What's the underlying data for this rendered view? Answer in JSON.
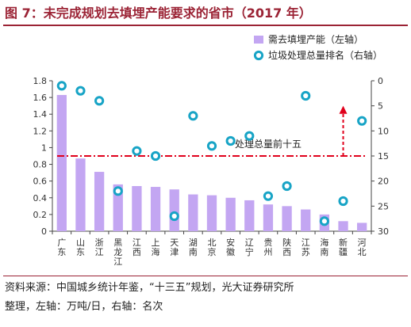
{
  "header": {
    "title": "图 7：未完成规划去填埋产能要求的省市（2017 年）"
  },
  "footer": {
    "source_line1": "资料来源：中国城乡统计年鉴，“十三五”规划，光大证券研究所",
    "source_line2": "整理，左轴：万吨/日，右轴：名次"
  },
  "chart_data": {
    "type": "bar",
    "categories": [
      "广东",
      "山东",
      "浙江",
      "黑龙江",
      "江西",
      "上海",
      "天津",
      "湖南",
      "北京",
      "安徽",
      "辽宁",
      "贵州",
      "陕西",
      "江苏",
      "海南",
      "新疆",
      "河北"
    ],
    "series": [
      {
        "name": "需去填埋产能（左轴）",
        "kind": "bar",
        "axis": "left",
        "color": "#c3a6f2",
        "values": [
          1.63,
          0.87,
          0.71,
          0.56,
          0.54,
          0.53,
          0.5,
          0.44,
          0.43,
          0.4,
          0.37,
          0.32,
          0.3,
          0.26,
          0.2,
          0.12,
          0.1
        ]
      },
      {
        "name": "垃圾处理总量排名（右轴）",
        "kind": "scatter",
        "axis": "right",
        "color": "#18a4c6",
        "values": [
          1,
          2,
          4,
          22,
          14,
          15,
          27,
          7,
          13,
          12,
          11,
          23,
          21,
          3,
          28,
          24,
          8
        ]
      }
    ],
    "y_left": {
      "min": 0,
      "max": 1.8,
      "ticks": [
        "0",
        "0.2",
        "0.4",
        "0.6",
        "0.8",
        "1",
        "1.2",
        "1.4",
        "1.6",
        "1.8"
      ]
    },
    "y_right": {
      "min": 0,
      "max": 30,
      "inverted": true,
      "ticks": [
        "0",
        "5",
        "10",
        "15",
        "20",
        "25",
        "30"
      ]
    },
    "reference_line": {
      "axis": "right",
      "value": 15,
      "label": "处理总量前十五",
      "color": "#e0001b",
      "style": "dash-dot",
      "arrow_at_category": "新疆"
    },
    "legend_position": "top-right",
    "grid": false
  }
}
